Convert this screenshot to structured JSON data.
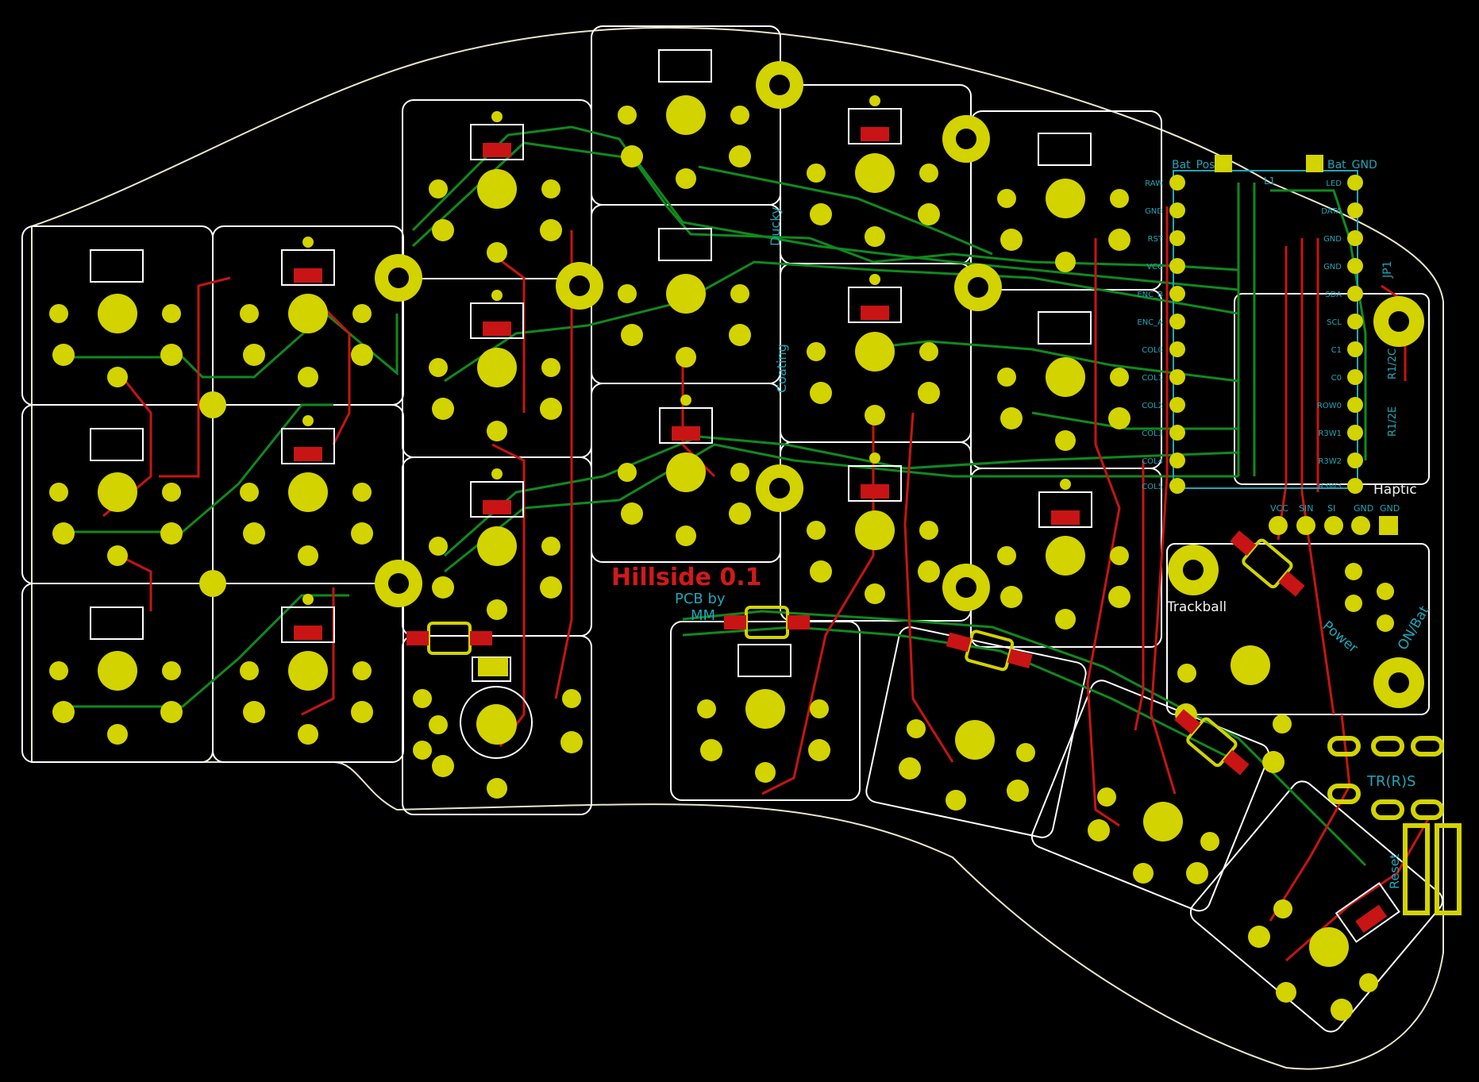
{
  "board": {
    "title": "Hillside 0.1",
    "credit_line1": "PCB by",
    "credit_line2": "MM",
    "label_ducky": "Ducky",
    "label_coating": "Coating",
    "colors": {
      "background": "#000000",
      "outline": "#e8e6c8",
      "keycap_outline": "#ffffff",
      "copper_top": "#c81414",
      "copper_bottom": "#0f8a1f",
      "pad": "#d3d300",
      "silkscreen": "#21a6b8"
    }
  },
  "mcu": {
    "bat_pos": "Bat_Pos",
    "bat_gnd": "Bat_GND",
    "left_pins": [
      "RAW",
      "GND",
      "RST",
      "VCC",
      "ENC_B",
      "ENC_A",
      "COL0",
      "COL1",
      "COL2",
      "COL3",
      "COL4",
      "COL5"
    ],
    "right_pins": [
      "LED",
      "DATA",
      "GND",
      "GND",
      "SDA",
      "SCL",
      "C1",
      "C0",
      "ROW0",
      "R3W1",
      "R3W2",
      "R3W3"
    ],
    "jp1": "JP1",
    "res_1": "R1/2C",
    "res_2": "R1/2E",
    "reset": "Reset"
  },
  "haptic": {
    "label": "Haptic",
    "pins": [
      "VCC",
      "SIN",
      "SI",
      "GND"
    ],
    "gnd": "GND"
  },
  "misc": {
    "trackball": "Trackball",
    "power": "Power",
    "bat_on": "ON/Bat",
    "trrs": "TR(R)S",
    "l1": "L1"
  }
}
